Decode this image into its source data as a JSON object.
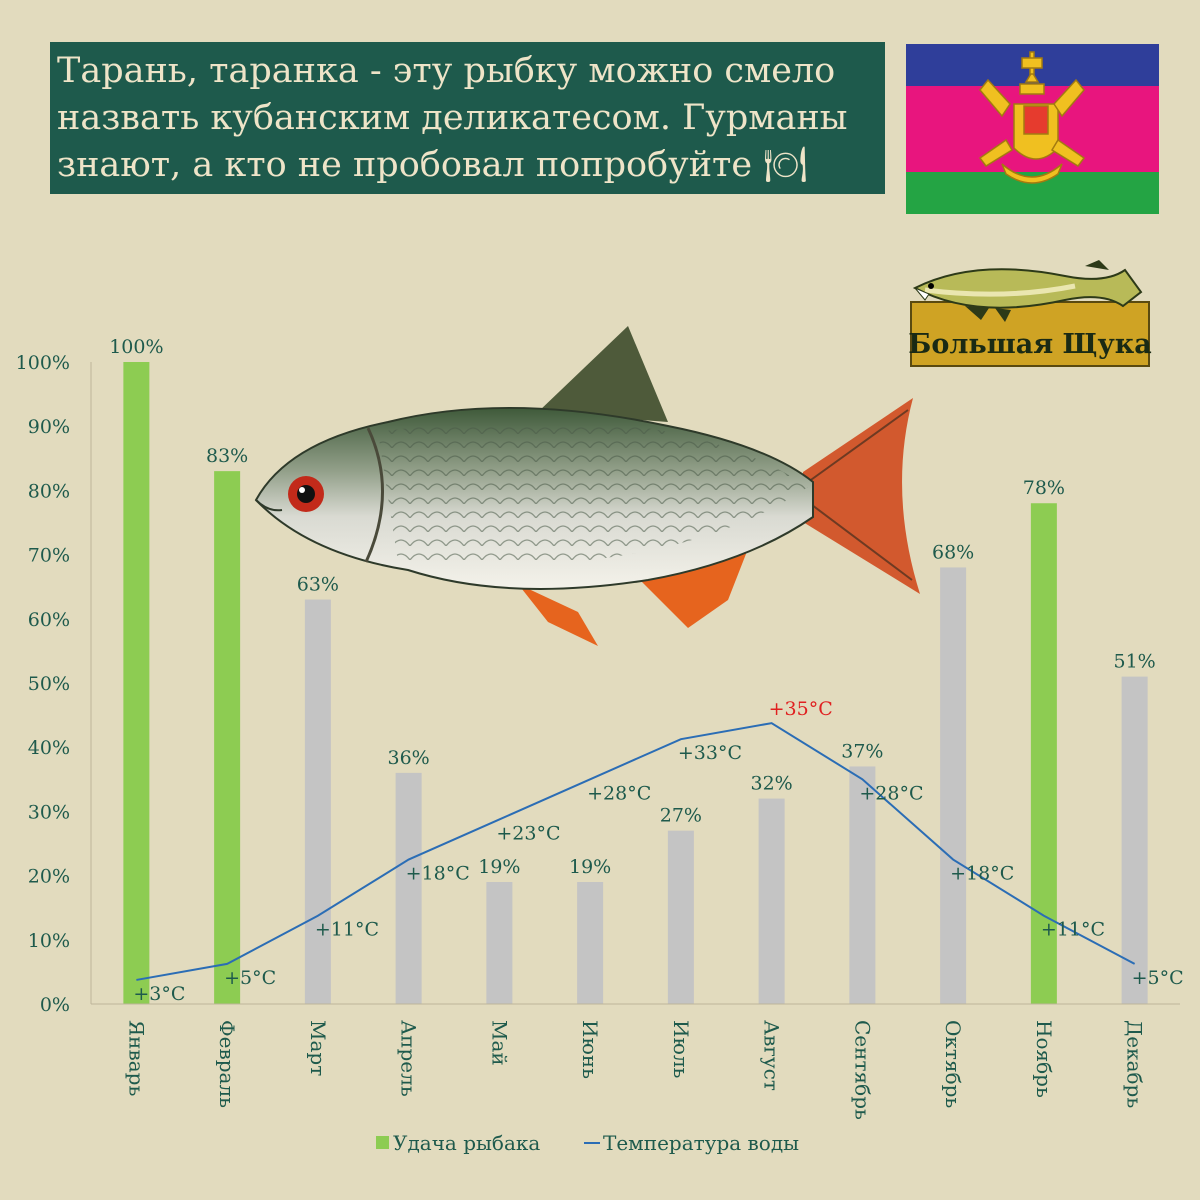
{
  "header": {
    "title": "Тарань, таранка - эту рыбку можно смело назвать кубанским деликатесом. Гурманы знают, а кто не пробовал попробуйте 🍽"
  },
  "logo": {
    "text": "Большая Щука"
  },
  "icons": {
    "flag": "kuban-flag-icon",
    "logo": "pike-logo-icon",
    "fish": "roach-fish-illustration",
    "plate": "fork-plate-knife-icon"
  },
  "colors": {
    "background": "#e2dbbe",
    "title_bg": "#1e5a4c",
    "bar_green": "#8dcc52",
    "bar_gray": "#c4c4c4",
    "line": "#2b6db5",
    "label": "#1e5a4c",
    "peak": "#e02020"
  },
  "chart_data": {
    "type": "bar",
    "categories": [
      "Январь",
      "Февраль",
      "Март",
      "Апрель",
      "Май",
      "Июнь",
      "Июль",
      "Август",
      "Сентябрь",
      "Октябрь",
      "Ноябрь",
      "Декабрь"
    ],
    "y_ticks": [
      "0%",
      "10%",
      "20%",
      "30%",
      "40%",
      "50%",
      "60%",
      "70%",
      "80%",
      "90%",
      "100%"
    ],
    "ylim": [
      0,
      100
    ],
    "series": [
      {
        "name": "Удача рыбака",
        "type": "bar",
        "values": [
          100,
          83,
          63,
          36,
          19,
          19,
          27,
          32,
          37,
          68,
          78,
          51
        ],
        "labels": [
          "100%",
          "83%",
          "63%",
          "36%",
          "19%",
          "19%",
          "27%",
          "32%",
          "37%",
          "68%",
          "78%",
          "51%"
        ],
        "highlight": [
          true,
          true,
          false,
          false,
          false,
          false,
          false,
          false,
          false,
          false,
          true,
          false
        ]
      },
      {
        "name": "Температура воды",
        "type": "line",
        "values": [
          3,
          5,
          11,
          18,
          23,
          28,
          33,
          35,
          28,
          18,
          11,
          5
        ],
        "labels": [
          "+3°C",
          "+5°C",
          "+11°C",
          "+18°C",
          "+23°C",
          "+28°C",
          "+33°C",
          "+35°C",
          "+28°C",
          "+18°C",
          "+11°C",
          "+5°C"
        ],
        "peak_index": 7
      }
    ],
    "legend_position": "bottom",
    "grid": false
  }
}
